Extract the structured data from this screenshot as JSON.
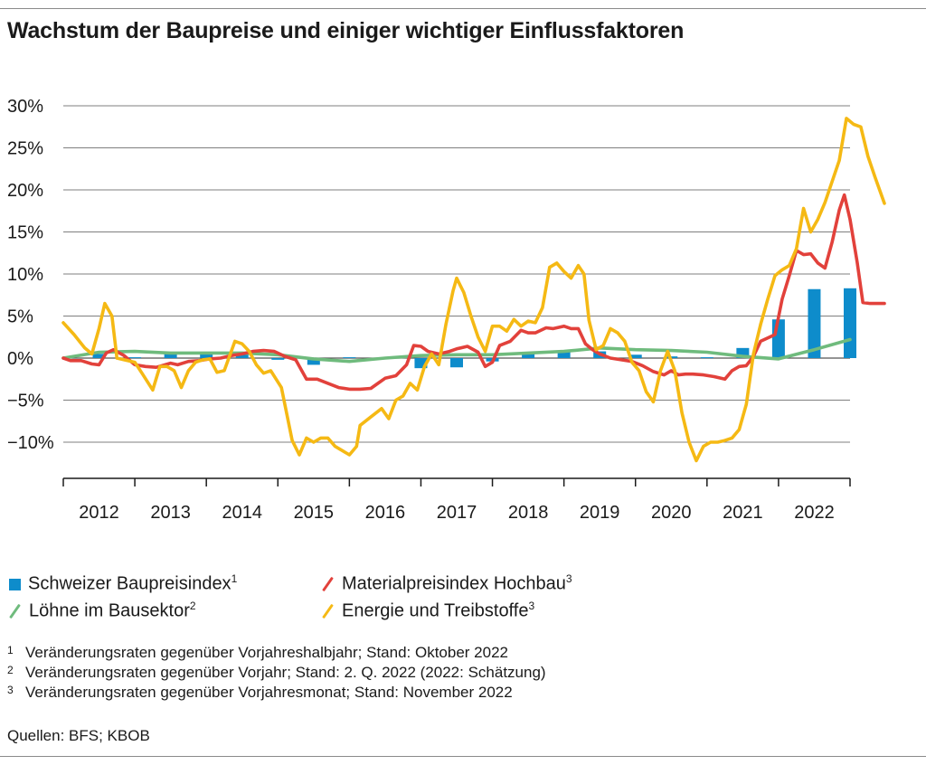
{
  "title": "Wachstum der Baupreise und einiger wichtiger Einflussfaktoren",
  "legend": [
    {
      "label": "Schweizer Baupreisindex",
      "sup": "1",
      "color": "#0e8ccb",
      "icon": "bar-square-icon"
    },
    {
      "label": "Materialpreisindex Hochbau",
      "sup": "3",
      "color": "#e2413b",
      "icon": "slash-line-icon"
    },
    {
      "label": "Löhne im Bausektor",
      "sup": "2",
      "color": "#6fbb7d",
      "icon": "slash-line-icon"
    },
    {
      "label": "Energie und Treibstoffe",
      "sup": "3",
      "color": "#f5b914",
      "icon": "slash-line-icon"
    }
  ],
  "footnotes": [
    {
      "num": "1",
      "text": "Veränderungsraten gegenüber Vorjahreshalbjahr; Stand: Oktober 2022"
    },
    {
      "num": "2",
      "text": "Veränderungsraten gegenüber Vorjahr; Stand: 2. Q. 2022 (2022: Schätzung)"
    },
    {
      "num": "3",
      "text": "Veränderungsraten gegenüber Vorjahresmonat; Stand: November 2022"
    }
  ],
  "source": "Quellen: BFS; KBOB",
  "chart_data": {
    "type": "bar+line",
    "ylim": [
      -15,
      30
    ],
    "y_ticks": [
      30,
      25,
      20,
      15,
      10,
      5,
      0,
      -5,
      -10
    ],
    "y_tick_labels": [
      "30%",
      "25%",
      "20%",
      "15%",
      "10%",
      "5%",
      "0%",
      "−5%",
      "−10%"
    ],
    "xlim": [
      2011.5,
      2022.5
    ],
    "x_categories": [
      "2012",
      "2013",
      "2014",
      "2015",
      "2016",
      "2017",
      "2018",
      "2019",
      "2020",
      "2021",
      "2022"
    ],
    "grid": true,
    "series": [
      {
        "name": "Schweizer Baupreisindex",
        "type": "bar",
        "color": "#0e8ccb",
        "points": [
          [
            2012.0,
            0.5
          ],
          [
            2012.5,
            0.1
          ],
          [
            2013.0,
            0.5
          ],
          [
            2013.5,
            0.6
          ],
          [
            2014.0,
            0.6
          ],
          [
            2014.5,
            -0.2
          ],
          [
            2015.0,
            -0.8
          ],
          [
            2015.5,
            0.1
          ],
          [
            2016.0,
            0.0
          ],
          [
            2016.5,
            -1.2
          ],
          [
            2017.0,
            -1.1
          ],
          [
            2017.5,
            -0.4
          ],
          [
            2018.0,
            0.6
          ],
          [
            2018.5,
            0.8
          ],
          [
            2019.0,
            0.8
          ],
          [
            2019.5,
            0.4
          ],
          [
            2020.0,
            0.2
          ],
          [
            2020.5,
            0.1
          ],
          [
            2021.0,
            1.2
          ],
          [
            2021.5,
            4.6
          ],
          [
            2022.0,
            8.2
          ],
          [
            2022.5,
            8.3
          ]
        ]
      },
      {
        "name": "Materialpreisindex Hochbau",
        "type": "line",
        "color": "#e2413b",
        "points": [
          [
            2011.5,
            0.0
          ],
          [
            2011.6,
            -0.3
          ],
          [
            2011.75,
            -0.3
          ],
          [
            2011.9,
            -0.7
          ],
          [
            2012.0,
            -0.8
          ],
          [
            2012.1,
            0.6
          ],
          [
            2012.2,
            1.0
          ],
          [
            2012.35,
            0.3
          ],
          [
            2012.5,
            -0.8
          ],
          [
            2012.65,
            -1.0
          ],
          [
            2012.8,
            -1.1
          ],
          [
            2013.0,
            -0.6
          ],
          [
            2013.1,
            -0.8
          ],
          [
            2013.25,
            -0.4
          ],
          [
            2013.4,
            -0.3
          ],
          [
            2013.55,
            -0.1
          ],
          [
            2013.7,
            0.0
          ],
          [
            2013.85,
            0.3
          ],
          [
            2014.0,
            0.5
          ],
          [
            2014.15,
            0.8
          ],
          [
            2014.3,
            0.9
          ],
          [
            2014.45,
            0.8
          ],
          [
            2014.6,
            0.2
          ],
          [
            2014.75,
            -0.2
          ],
          [
            2014.9,
            -2.5
          ],
          [
            2015.05,
            -2.5
          ],
          [
            2015.2,
            -3.0
          ],
          [
            2015.35,
            -3.5
          ],
          [
            2015.5,
            -3.7
          ],
          [
            2015.65,
            -3.7
          ],
          [
            2015.8,
            -3.6
          ],
          [
            2015.9,
            -3.0
          ],
          [
            2016.0,
            -2.4
          ],
          [
            2016.15,
            -2.1
          ],
          [
            2016.3,
            -0.8
          ],
          [
            2016.4,
            1.5
          ],
          [
            2016.5,
            1.4
          ],
          [
            2016.6,
            0.8
          ],
          [
            2016.75,
            0.5
          ],
          [
            2016.9,
            0.8
          ],
          [
            2017.0,
            1.1
          ],
          [
            2017.15,
            1.4
          ],
          [
            2017.3,
            0.7
          ],
          [
            2017.4,
            -1.0
          ],
          [
            2017.5,
            -0.5
          ],
          [
            2017.6,
            1.5
          ],
          [
            2017.75,
            2.0
          ],
          [
            2017.9,
            3.3
          ],
          [
            2018.0,
            3.0
          ],
          [
            2018.1,
            3.0
          ],
          [
            2018.25,
            3.6
          ],
          [
            2018.35,
            3.5
          ],
          [
            2018.5,
            3.8
          ],
          [
            2018.6,
            3.5
          ],
          [
            2018.7,
            3.5
          ],
          [
            2018.8,
            1.7
          ],
          [
            2018.9,
            1.0
          ],
          [
            2019.0,
            0.5
          ],
          [
            2019.15,
            0.0
          ],
          [
            2019.3,
            -0.2
          ],
          [
            2019.45,
            -0.4
          ],
          [
            2019.6,
            -0.9
          ],
          [
            2019.75,
            -1.6
          ],
          [
            2019.9,
            -2.0
          ],
          [
            2020.0,
            -1.5
          ],
          [
            2020.1,
            -2.0
          ],
          [
            2020.2,
            -1.9
          ],
          [
            2020.3,
            -1.9
          ],
          [
            2020.45,
            -2.0
          ],
          [
            2020.6,
            -2.2
          ],
          [
            2020.75,
            -2.5
          ],
          [
            2020.85,
            -1.5
          ],
          [
            2020.95,
            -1.0
          ],
          [
            2021.05,
            -0.9
          ],
          [
            2021.15,
            0.2
          ],
          [
            2021.25,
            2.0
          ],
          [
            2021.35,
            2.4
          ],
          [
            2021.45,
            2.8
          ],
          [
            2021.55,
            7.0
          ],
          [
            2021.65,
            9.8
          ],
          [
            2021.75,
            12.8
          ],
          [
            2021.85,
            12.3
          ],
          [
            2021.95,
            12.4
          ],
          [
            2022.05,
            11.3
          ],
          [
            2022.15,
            10.7
          ],
          [
            2022.25,
            13.8
          ],
          [
            2022.35,
            17.6
          ],
          [
            2022.42,
            19.4
          ],
          [
            2022.5,
            16.5
          ],
          [
            2022.6,
            11.4
          ],
          [
            2022.68,
            6.6
          ],
          [
            2022.78,
            6.5
          ],
          [
            2022.88,
            6.5
          ],
          [
            2022.98,
            6.5
          ]
        ]
      },
      {
        "name": "Löhne im Bausektor",
        "type": "line",
        "color": "#6fbb7d",
        "points": [
          [
            2011.5,
            0.0
          ],
          [
            2012.0,
            0.7
          ],
          [
            2012.5,
            0.8
          ],
          [
            2013.0,
            0.6
          ],
          [
            2013.5,
            0.6
          ],
          [
            2014.0,
            0.6
          ],
          [
            2014.5,
            0.4
          ],
          [
            2015.0,
            -0.1
          ],
          [
            2015.5,
            -0.4
          ],
          [
            2016.0,
            0.0
          ],
          [
            2016.5,
            0.3
          ],
          [
            2017.0,
            0.4
          ],
          [
            2017.5,
            0.4
          ],
          [
            2018.0,
            0.6
          ],
          [
            2018.5,
            0.8
          ],
          [
            2019.0,
            1.2
          ],
          [
            2019.5,
            1.0
          ],
          [
            2020.0,
            0.9
          ],
          [
            2020.5,
            0.7
          ],
          [
            2021.0,
            0.2
          ],
          [
            2021.5,
            -0.1
          ],
          [
            2022.0,
            1.0
          ],
          [
            2022.5,
            2.2
          ]
        ]
      },
      {
        "name": "Energie und Treibstoffe",
        "type": "line",
        "color": "#f5b914",
        "points": [
          [
            2011.5,
            4.2
          ],
          [
            2011.65,
            2.8
          ],
          [
            2011.8,
            1.2
          ],
          [
            2011.9,
            0.5
          ],
          [
            2012.0,
            3.5
          ],
          [
            2012.08,
            6.5
          ],
          [
            2012.18,
            5.0
          ],
          [
            2012.25,
            0.0
          ],
          [
            2012.35,
            -0.2
          ],
          [
            2012.5,
            -0.5
          ],
          [
            2012.6,
            -1.8
          ],
          [
            2012.75,
            -3.8
          ],
          [
            2012.85,
            -1.0
          ],
          [
            2012.95,
            -1.0
          ],
          [
            2013.05,
            -1.5
          ],
          [
            2013.15,
            -3.5
          ],
          [
            2013.25,
            -1.5
          ],
          [
            2013.35,
            -0.5
          ],
          [
            2013.45,
            -0.2
          ],
          [
            2013.55,
            -0.1
          ],
          [
            2013.65,
            -1.7
          ],
          [
            2013.75,
            -1.5
          ],
          [
            2013.9,
            2.0
          ],
          [
            2014.0,
            1.7
          ],
          [
            2014.1,
            0.8
          ],
          [
            2014.2,
            -0.8
          ],
          [
            2014.3,
            -1.8
          ],
          [
            2014.4,
            -1.5
          ],
          [
            2014.55,
            -3.5
          ],
          [
            2014.7,
            -9.8
          ],
          [
            2014.8,
            -11.5
          ],
          [
            2014.9,
            -9.5
          ],
          [
            2015.0,
            -10.0
          ],
          [
            2015.1,
            -9.5
          ],
          [
            2015.2,
            -9.5
          ],
          [
            2015.3,
            -10.5
          ],
          [
            2015.4,
            -11.0
          ],
          [
            2015.5,
            -11.5
          ],
          [
            2015.6,
            -10.5
          ],
          [
            2015.65,
            -8.0
          ],
          [
            2015.8,
            -7.0
          ],
          [
            2015.95,
            -6.0
          ],
          [
            2016.05,
            -7.2
          ],
          [
            2016.15,
            -5.0
          ],
          [
            2016.25,
            -4.5
          ],
          [
            2016.35,
            -3.0
          ],
          [
            2016.45,
            -3.8
          ],
          [
            2016.55,
            -1.0
          ],
          [
            2016.65,
            0.5
          ],
          [
            2016.75,
            -0.8
          ],
          [
            2016.85,
            4.0
          ],
          [
            2016.95,
            8.0
          ],
          [
            2017.0,
            9.5
          ],
          [
            2017.1,
            7.8
          ],
          [
            2017.2,
            5.0
          ],
          [
            2017.3,
            2.5
          ],
          [
            2017.4,
            0.8
          ],
          [
            2017.5,
            3.8
          ],
          [
            2017.6,
            3.8
          ],
          [
            2017.7,
            3.2
          ],
          [
            2017.8,
            4.6
          ],
          [
            2017.9,
            3.8
          ],
          [
            2018.0,
            4.4
          ],
          [
            2018.1,
            4.2
          ],
          [
            2018.2,
            6.0
          ],
          [
            2018.3,
            10.8
          ],
          [
            2018.4,
            11.3
          ],
          [
            2018.5,
            10.3
          ],
          [
            2018.6,
            9.5
          ],
          [
            2018.7,
            11.0
          ],
          [
            2018.78,
            10.0
          ],
          [
            2018.85,
            4.5
          ],
          [
            2018.95,
            1.0
          ],
          [
            2019.05,
            1.5
          ],
          [
            2019.15,
            3.5
          ],
          [
            2019.25,
            3.0
          ],
          [
            2019.35,
            2.0
          ],
          [
            2019.45,
            -0.5
          ],
          [
            2019.55,
            -1.5
          ],
          [
            2019.65,
            -4.0
          ],
          [
            2019.75,
            -5.2
          ],
          [
            2019.85,
            -1.5
          ],
          [
            2019.95,
            0.8
          ],
          [
            2020.05,
            -1.5
          ],
          [
            2020.15,
            -6.5
          ],
          [
            2020.25,
            -10.0
          ],
          [
            2020.35,
            -12.2
          ],
          [
            2020.45,
            -10.5
          ],
          [
            2020.55,
            -10.0
          ],
          [
            2020.65,
            -10.0
          ],
          [
            2020.75,
            -9.8
          ],
          [
            2020.85,
            -9.5
          ],
          [
            2020.95,
            -8.5
          ],
          [
            2021.05,
            -5.5
          ],
          [
            2021.15,
            0.5
          ],
          [
            2021.25,
            4.0
          ],
          [
            2021.35,
            7.0
          ],
          [
            2021.45,
            9.8
          ],
          [
            2021.55,
            10.5
          ],
          [
            2021.65,
            11.0
          ],
          [
            2021.75,
            13.0
          ],
          [
            2021.85,
            17.8
          ],
          [
            2021.95,
            15.0
          ],
          [
            2022.05,
            16.5
          ],
          [
            2022.15,
            18.5
          ],
          [
            2022.25,
            21.0
          ],
          [
            2022.35,
            23.5
          ],
          [
            2022.45,
            28.5
          ],
          [
            2022.55,
            27.8
          ],
          [
            2022.65,
            27.5
          ],
          [
            2022.75,
            24.0
          ],
          [
            2022.85,
            21.5
          ],
          [
            2022.98,
            18.4
          ]
        ]
      }
    ]
  }
}
